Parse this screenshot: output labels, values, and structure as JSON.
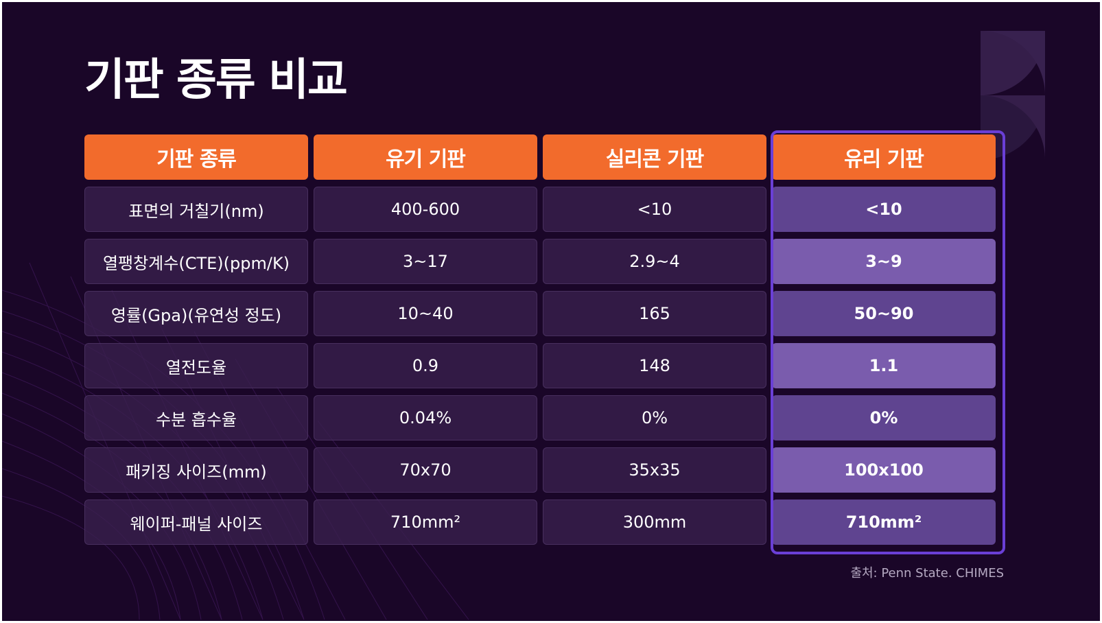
{
  "title": "기판 종류 비교",
  "table": {
    "headers": [
      "기판 종류",
      "유기 기판",
      "실리콘 기판",
      "유리 기판"
    ],
    "rows": [
      [
        "표면의 거칠기(nm)",
        "400-600",
        "<10",
        "<10"
      ],
      [
        "열팽창계수(CTE)(ppm/K)",
        "3~17",
        "2.9~4",
        "3~9"
      ],
      [
        "영률(Gpa)(유연성 정도)",
        "10~40",
        "165",
        "50~90"
      ],
      [
        "열전도율",
        "0.9",
        "148",
        "1.1"
      ],
      [
        "수분 흡수율",
        "0.04%",
        "0%",
        "0%"
      ],
      [
        "패키징 사이즈(mm)",
        "70x70",
        "35x35",
        "100x100"
      ],
      [
        "웨이퍼-패널 사이즈",
        "710mm²",
        "300mm",
        "710mm²"
      ]
    ],
    "highlighted_column": "유리 기판"
  },
  "source": "출처: Penn State. CHIMES",
  "colors": {
    "background": "#1a0628",
    "header": "#f26b2c",
    "highlight_border": "#6a3fd6",
    "highlight_cell_a": "#5f4490",
    "highlight_cell_b": "#7a5cad"
  }
}
